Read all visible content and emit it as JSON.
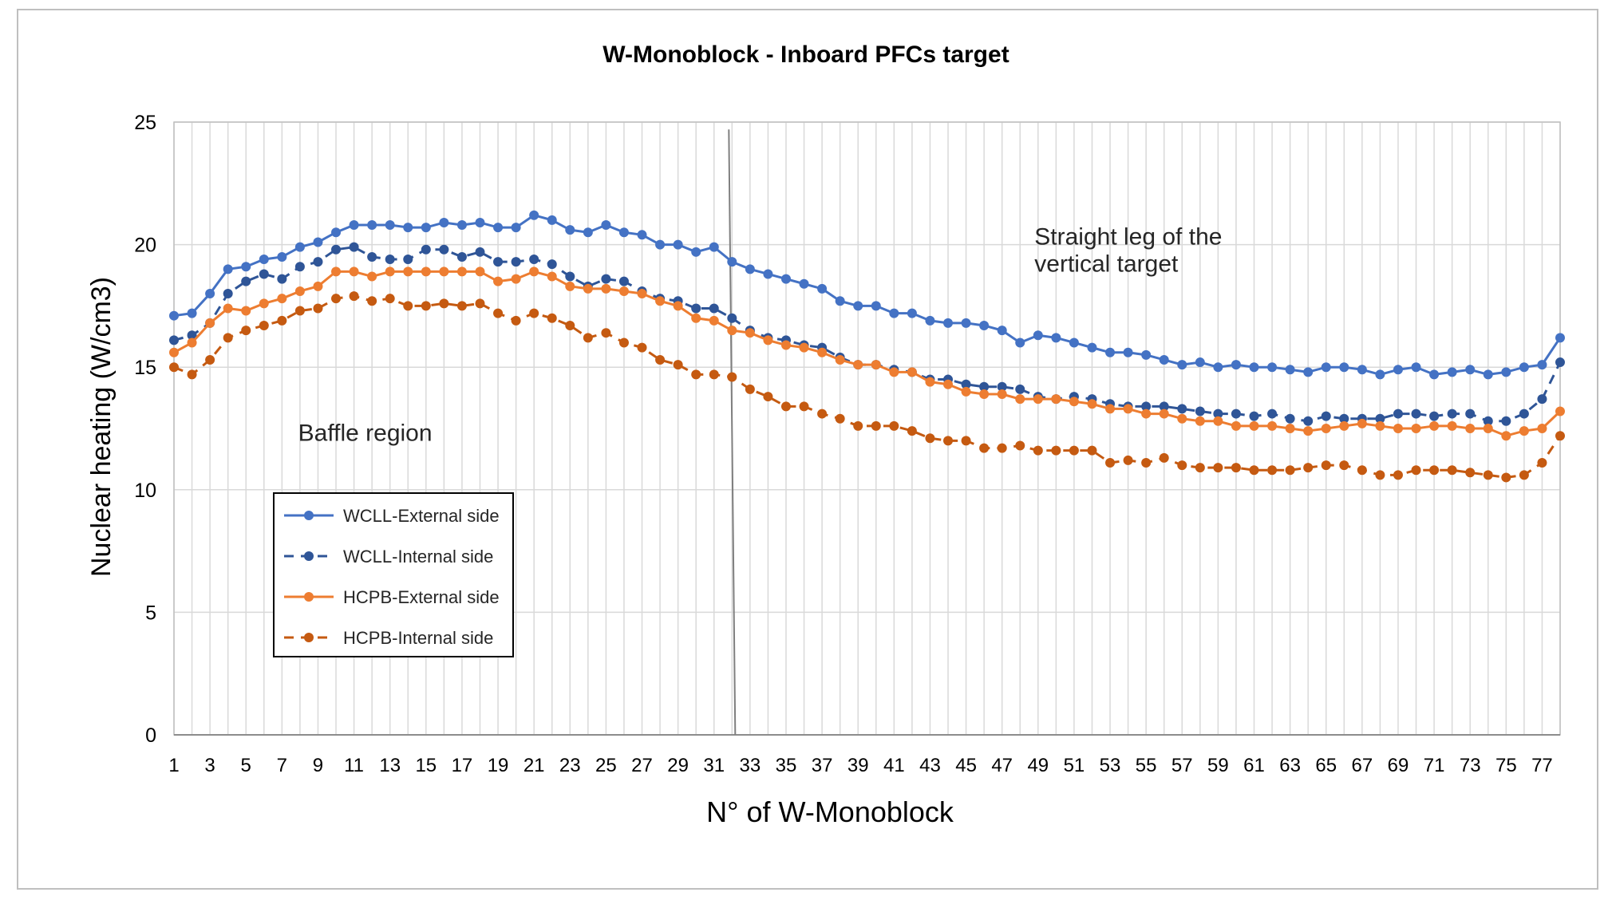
{
  "chart_data": {
    "type": "line",
    "title": "W-Monoblock - Inboard PFCs target",
    "xlabel": "N° of W-Monoblock",
    "ylabel": "Nuclear heating (W/cm3)",
    "ylim": [
      0,
      25
    ],
    "yticks": [
      0,
      5,
      10,
      15,
      20,
      25
    ],
    "x": [
      1,
      2,
      3,
      4,
      5,
      6,
      7,
      8,
      9,
      10,
      11,
      12,
      13,
      14,
      15,
      16,
      17,
      18,
      19,
      20,
      21,
      22,
      23,
      24,
      25,
      26,
      27,
      28,
      29,
      30,
      31,
      32,
      33,
      34,
      35,
      36,
      37,
      38,
      39,
      40,
      41,
      42,
      43,
      44,
      45,
      46,
      47,
      48,
      49,
      50,
      51,
      52,
      53,
      54,
      55,
      56,
      57,
      58,
      59,
      60,
      61,
      62,
      63,
      64,
      65,
      66,
      67,
      68,
      69,
      70,
      71,
      72,
      73,
      74,
      75,
      76,
      77,
      78
    ],
    "xtick_labels": [
      "1",
      "3",
      "5",
      "7",
      "9",
      "11",
      "13",
      "15",
      "17",
      "19",
      "21",
      "23",
      "25",
      "27",
      "29",
      "31",
      "33",
      "35",
      "37",
      "39",
      "41",
      "43",
      "45",
      "47",
      "49",
      "51",
      "53",
      "55",
      "57",
      "59",
      "61",
      "63",
      "65",
      "67",
      "69",
      "71",
      "73",
      "75",
      "77"
    ],
    "grid": true,
    "vertical_marker_x": 32,
    "annotations": [
      {
        "text": "Straight leg of the",
        "x": 48.8,
        "y": 20.0
      },
      {
        "text": "vertical target",
        "x": 48.8,
        "y": 18.9
      },
      {
        "text": "Baffle region",
        "x": 7.9,
        "y": 12.0
      }
    ],
    "series": [
      {
        "name": "WCLL-External side",
        "color": "#4472c4",
        "style": "solid",
        "values": [
          17.1,
          17.2,
          18.0,
          19.0,
          19.1,
          19.4,
          19.5,
          19.9,
          20.1,
          20.5,
          20.8,
          20.8,
          20.8,
          20.7,
          20.7,
          20.9,
          20.8,
          20.9,
          20.7,
          20.7,
          21.2,
          21.0,
          20.6,
          20.5,
          20.8,
          20.5,
          20.4,
          20.0,
          20.0,
          19.7,
          19.9,
          19.3,
          19.0,
          18.8,
          18.6,
          18.4,
          18.2,
          17.7,
          17.5,
          17.5,
          17.2,
          17.2,
          16.9,
          16.8,
          16.8,
          16.7,
          16.5,
          16.0,
          16.3,
          16.2,
          16.0,
          15.8,
          15.6,
          15.6,
          15.5,
          15.3,
          15.1,
          15.2,
          15.0,
          15.1,
          15.0,
          15.0,
          14.9,
          14.8,
          15.0,
          15.0,
          14.9,
          14.7,
          14.9,
          15.0,
          14.7,
          14.8,
          14.9,
          14.7,
          14.8,
          15.0,
          15.1,
          16.2
        ]
      },
      {
        "name": "WCLL-Internal side",
        "color": "#2f5597",
        "style": "dashed",
        "values": [
          16.1,
          16.3,
          16.8,
          18.0,
          18.5,
          18.8,
          18.6,
          19.1,
          19.3,
          19.8,
          19.9,
          19.5,
          19.4,
          19.4,
          19.8,
          19.8,
          19.5,
          19.7,
          19.3,
          19.3,
          19.4,
          19.2,
          18.7,
          18.3,
          18.6,
          18.5,
          18.1,
          17.8,
          17.7,
          17.4,
          17.4,
          17.0,
          16.5,
          16.2,
          16.1,
          15.9,
          15.8,
          15.4,
          15.1,
          15.1,
          14.9,
          14.8,
          14.5,
          14.5,
          14.3,
          14.2,
          14.2,
          14.1,
          13.8,
          13.7,
          13.8,
          13.7,
          13.5,
          13.4,
          13.4,
          13.4,
          13.3,
          13.2,
          13.1,
          13.1,
          13.0,
          13.1,
          12.9,
          12.8,
          13.0,
          12.9,
          12.9,
          12.9,
          13.1,
          13.1,
          13.0,
          13.1,
          13.1,
          12.8,
          12.8,
          13.1,
          13.7,
          15.2
        ]
      },
      {
        "name": "HCPB-External side",
        "color": "#ed7d31",
        "style": "solid",
        "values": [
          15.6,
          16.0,
          16.8,
          17.4,
          17.3,
          17.6,
          17.8,
          18.1,
          18.3,
          18.9,
          18.9,
          18.7,
          18.9,
          18.9,
          18.9,
          18.9,
          18.9,
          18.9,
          18.5,
          18.6,
          18.9,
          18.7,
          18.3,
          18.2,
          18.2,
          18.1,
          18.0,
          17.7,
          17.5,
          17.0,
          16.9,
          16.5,
          16.4,
          16.1,
          15.9,
          15.8,
          15.6,
          15.3,
          15.1,
          15.1,
          14.8,
          14.8,
          14.4,
          14.3,
          14.0,
          13.9,
          13.9,
          13.7,
          13.7,
          13.7,
          13.6,
          13.5,
          13.3,
          13.3,
          13.1,
          13.1,
          12.9,
          12.8,
          12.8,
          12.6,
          12.6,
          12.6,
          12.5,
          12.4,
          12.5,
          12.6,
          12.7,
          12.6,
          12.5,
          12.5,
          12.6,
          12.6,
          12.5,
          12.5,
          12.2,
          12.4,
          12.5,
          13.2
        ]
      },
      {
        "name": "HCPB-Internal side",
        "color": "#c55a11",
        "style": "dashed",
        "values": [
          15.0,
          14.7,
          15.3,
          16.2,
          16.5,
          16.7,
          16.9,
          17.3,
          17.4,
          17.8,
          17.9,
          17.7,
          17.8,
          17.5,
          17.5,
          17.6,
          17.5,
          17.6,
          17.2,
          16.9,
          17.2,
          17.0,
          16.7,
          16.2,
          16.4,
          16.0,
          15.8,
          15.3,
          15.1,
          14.7,
          14.7,
          14.6,
          14.1,
          13.8,
          13.4,
          13.4,
          13.1,
          12.9,
          12.6,
          12.6,
          12.6,
          12.4,
          12.1,
          12.0,
          12.0,
          11.7,
          11.7,
          11.8,
          11.6,
          11.6,
          11.6,
          11.6,
          11.1,
          11.2,
          11.1,
          11.3,
          11.0,
          10.9,
          10.9,
          10.9,
          10.8,
          10.8,
          10.8,
          10.9,
          11.0,
          11.0,
          10.8,
          10.6,
          10.6,
          10.8,
          10.8,
          10.8,
          10.7,
          10.6,
          10.5,
          10.6,
          11.1,
          12.2
        ]
      }
    ],
    "legend": {
      "placement": "inside-left",
      "entries": [
        "WCLL-External side",
        "WCLL-Internal side",
        "HCPB-External side",
        "HCPB-Internal side"
      ]
    }
  }
}
